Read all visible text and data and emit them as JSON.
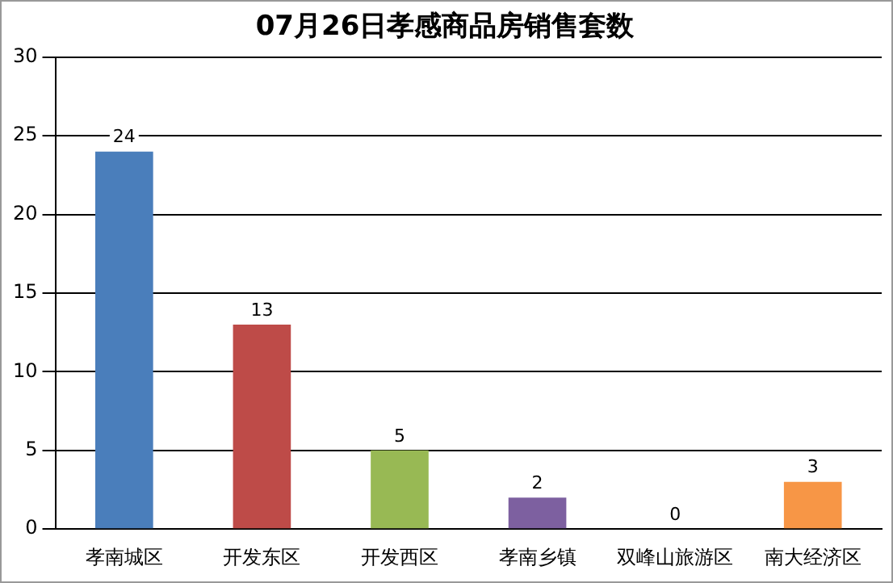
{
  "chart_data": {
    "type": "bar",
    "title": "07月26日孝感商品房销售套数",
    "categories": [
      "孝南城区",
      "开发东区",
      "开发西区",
      "孝南乡镇",
      "双峰山旅游区",
      "南大经济区"
    ],
    "values": [
      24,
      13,
      5,
      2,
      0,
      3
    ],
    "colors": [
      "#4a7ebb",
      "#be4b48",
      "#98b954",
      "#7d60a0",
      "#46aac5",
      "#f79646"
    ],
    "ylim": [
      0,
      30
    ],
    "yticks": [
      0,
      5,
      10,
      15,
      20,
      25,
      30
    ],
    "grid": "y",
    "data_labels": true,
    "legend": false
  }
}
